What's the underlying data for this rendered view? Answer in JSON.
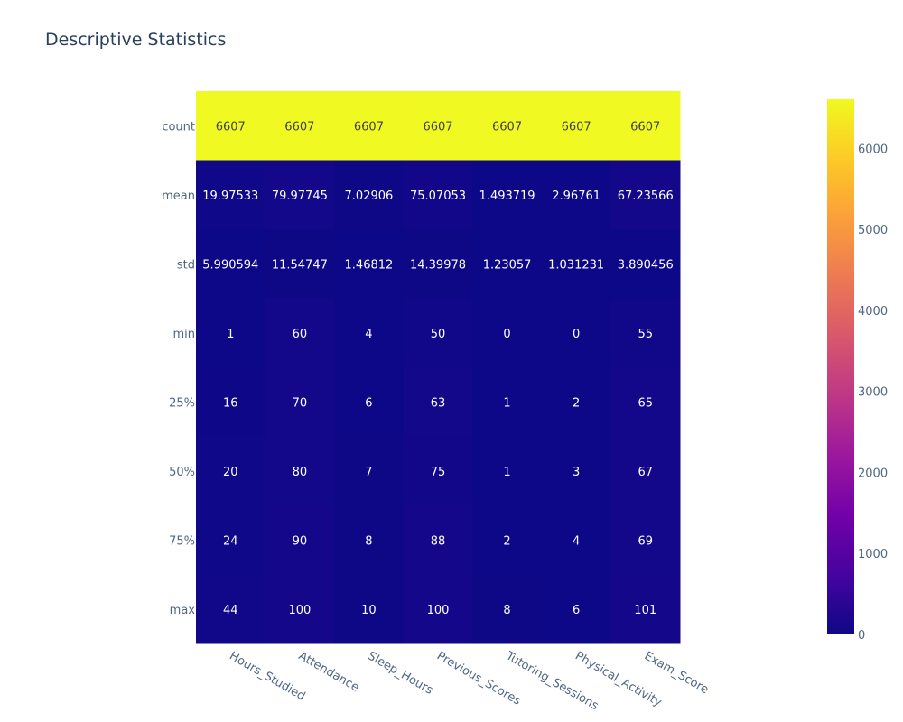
{
  "chart_data": {
    "type": "heatmap",
    "title": "Descriptive Statistics",
    "x": [
      "Hours_Studied",
      "Attendance",
      "Sleep_Hours",
      "Previous_Scores",
      "Tutoring_Sessions",
      "Physical_Activity",
      "Exam_Score"
    ],
    "y": [
      "count",
      "mean",
      "std",
      "min",
      "25%",
      "50%",
      "75%",
      "max"
    ],
    "z": [
      [
        6607,
        6607,
        6607,
        6607,
        6607,
        6607,
        6607
      ],
      [
        19.97533,
        79.97745,
        7.02906,
        75.07053,
        1.493719,
        2.96761,
        67.23566
      ],
      [
        5.990594,
        11.54747,
        1.46812,
        14.39978,
        1.23057,
        1.031231,
        3.890456
      ],
      [
        1,
        60,
        4,
        50,
        0,
        0,
        55
      ],
      [
        16,
        70,
        6,
        63,
        1,
        2,
        65
      ],
      [
        20,
        80,
        7,
        75,
        1,
        3,
        67
      ],
      [
        24,
        90,
        8,
        88,
        2,
        4,
        69
      ],
      [
        44,
        100,
        10,
        100,
        8,
        6,
        101
      ]
    ],
    "text": [
      [
        "6607",
        "6607",
        "6607",
        "6607",
        "6607",
        "6607",
        "6607"
      ],
      [
        "19.97533",
        "79.97745",
        "7.02906",
        "75.07053",
        "1.493719",
        "2.96761",
        "67.23566"
      ],
      [
        "5.990594",
        "11.54747",
        "1.46812",
        "14.39978",
        "1.23057",
        "1.031231",
        "3.890456"
      ],
      [
        "1",
        "60",
        "4",
        "50",
        "0",
        "0",
        "55"
      ],
      [
        "16",
        "70",
        "6",
        "63",
        "1",
        "2",
        "65"
      ],
      [
        "20",
        "80",
        "7",
        "75",
        "1",
        "3",
        "67"
      ],
      [
        "24",
        "90",
        "8",
        "88",
        "2",
        "4",
        "69"
      ],
      [
        "44",
        "100",
        "10",
        "100",
        "8",
        "6",
        "101"
      ]
    ],
    "zrange": [
      0,
      6607
    ],
    "colorbar": {
      "ticks": [
        0,
        1000,
        2000,
        3000,
        4000,
        5000,
        6000
      ],
      "tick_labels": [
        "0",
        "1000",
        "2000",
        "3000",
        "4000",
        "5000",
        "6000"
      ]
    },
    "colorscale": [
      "#0d0887",
      "#46039f",
      "#7201a8",
      "#9c179e",
      "#bd3786",
      "#d8576b",
      "#ed7953",
      "#fb9f3a",
      "#fdca26",
      "#f0f921"
    ],
    "grid": false
  }
}
